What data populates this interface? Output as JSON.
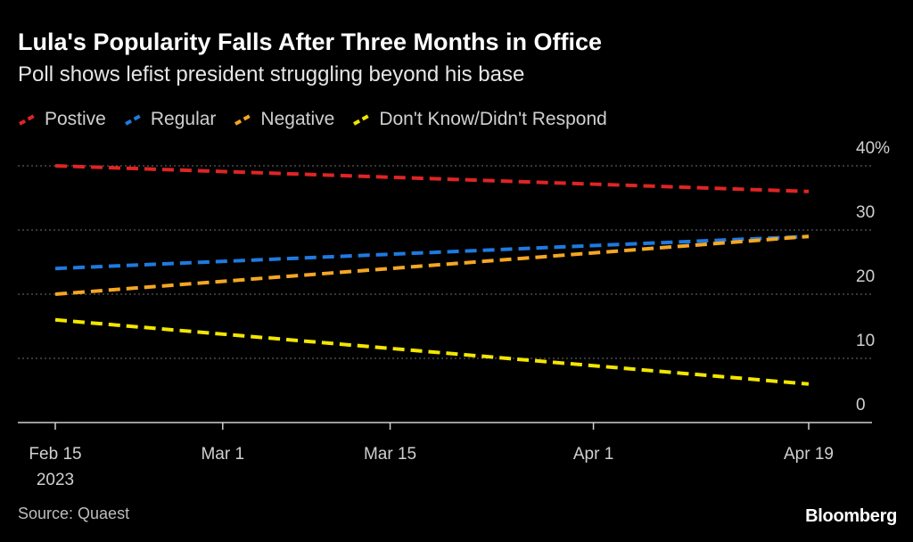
{
  "title": "Lula's Popularity Falls After Three Months in Office",
  "subtitle": "Poll shows lefist president struggling beyond his base",
  "source": "Source: Quaest",
  "brand": "Bloomberg",
  "chart_data": {
    "type": "line",
    "x_ticks": [
      "Feb 15",
      "Mar 1",
      "Mar 15",
      "Apr 1",
      "Apr 19"
    ],
    "x_year_label": "2023",
    "y_tick_labels": [
      "40%",
      "30",
      "20",
      "10",
      "0"
    ],
    "y_ticks": [
      40,
      30,
      20,
      10,
      0
    ],
    "ylim": [
      0,
      40
    ],
    "x_days": [
      0,
      14,
      28,
      45,
      63
    ],
    "series": [
      {
        "name": "Postive",
        "color": "#e02424",
        "x": [
          "Feb 15",
          "Apr 19"
        ],
        "values": [
          40,
          36
        ]
      },
      {
        "name": "Regular",
        "color": "#1f7ae0",
        "x": [
          "Feb 15",
          "Apr 19"
        ],
        "values": [
          24,
          29
        ]
      },
      {
        "name": "Negative",
        "color": "#f5a623",
        "x": [
          "Feb 15",
          "Apr 19"
        ],
        "values": [
          20,
          29
        ]
      },
      {
        "name": "Don't Know/Didn't Respond",
        "color": "#f2e600",
        "x": [
          "Feb 15",
          "Apr 19"
        ],
        "values": [
          16,
          6
        ]
      }
    ]
  }
}
